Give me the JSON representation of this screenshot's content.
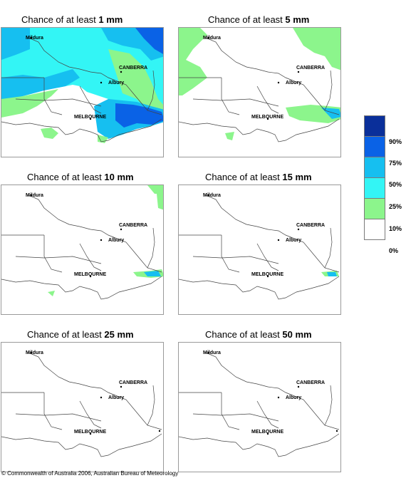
{
  "panels": [
    {
      "prefix": "Chance of at least ",
      "amount": "1 mm"
    },
    {
      "prefix": "Chance of at least ",
      "amount": "5 mm"
    },
    {
      "prefix": "Chance of at least ",
      "amount": "10 mm"
    },
    {
      "prefix": "Chance of at least ",
      "amount": "15 mm"
    },
    {
      "prefix": "Chance of at least ",
      "amount": "25 mm"
    },
    {
      "prefix": "Chance of at least ",
      "amount": "50 mm"
    }
  ],
  "cities": {
    "mildura": "Mildura",
    "canberra": "CANBERRA",
    "albury": "Albury",
    "melbourne": "MELBOURNE"
  },
  "legend": {
    "labels": [
      "90%",
      "75%",
      "50%",
      "25%",
      "10%",
      "0%"
    ],
    "colors": [
      "#0a2f9a",
      "#0a62e6",
      "#16bff0",
      "#33f5f5",
      "#8cf58c",
      "#ffffff"
    ]
  },
  "copyright": "© Commonwealth of Australia 2006, Australian Bureau of Meteorology"
}
